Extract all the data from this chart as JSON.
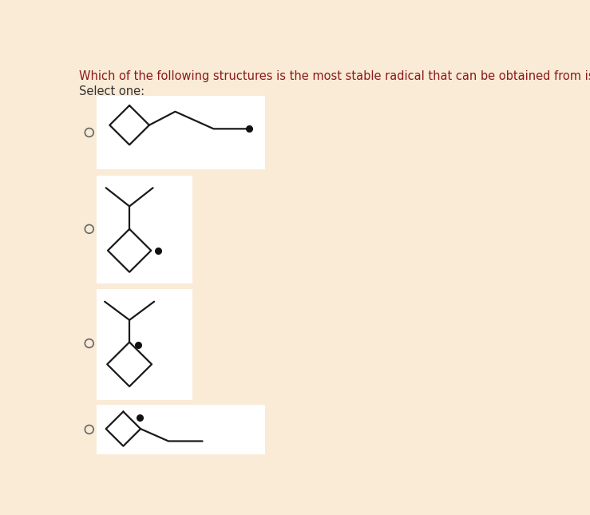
{
  "bg_color": "#faebd7",
  "box_color": "#ffffff",
  "title": "Which of the following structures is the most stable radical that can be obtained from isopropylcyclobutane?",
  "subtitle": "Select one:",
  "title_color": "#8b1a1a",
  "subtitle_color": "#333333",
  "line_color": "#1a1a1a",
  "radio_color": "#666666",
  "dot_color": "#111111",
  "title_fontsize": 10.5,
  "subtitle_fontsize": 10.5
}
